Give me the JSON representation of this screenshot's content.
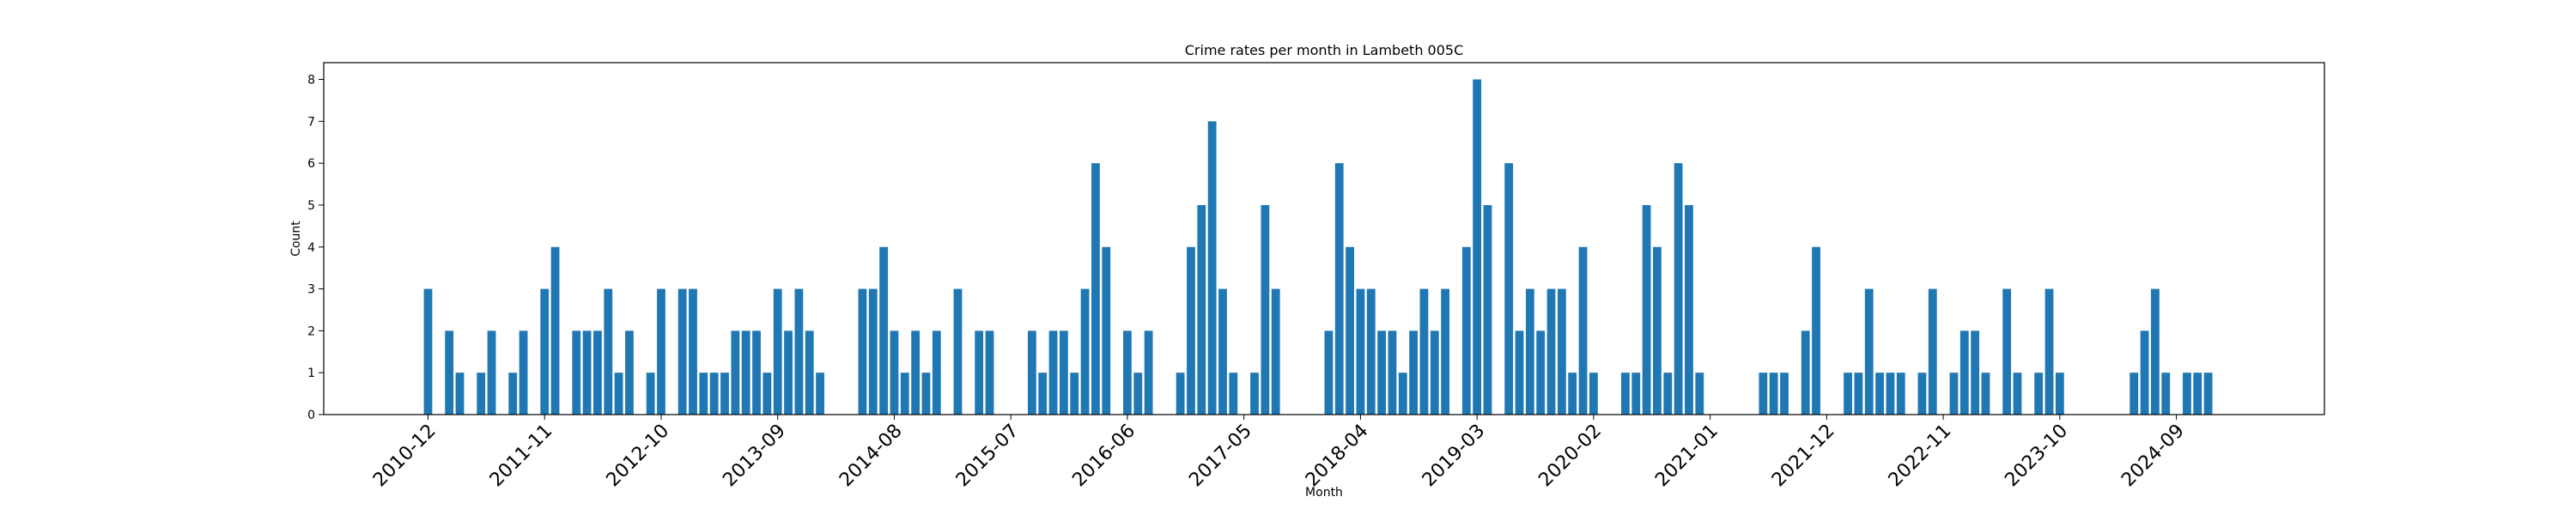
{
  "chart_data": {
    "type": "bar",
    "title": "Crime rates per month in Lambeth 005C",
    "xlabel": "Month",
    "ylabel": "Count",
    "ylim": [
      0,
      8.4
    ],
    "yticks": [
      0,
      1,
      2,
      3,
      4,
      5,
      6,
      7,
      8
    ],
    "grid": false,
    "bar_color": "#1f77b4",
    "start_month": "2010-12",
    "xtick_labels": [
      "2010-12",
      "2011-11",
      "2012-10",
      "2013-09",
      "2014-08",
      "2015-07",
      "2016-06",
      "2017-05",
      "2018-04",
      "2019-03",
      "2020-02",
      "2021-01",
      "2021-12",
      "2022-11",
      "2023-10",
      "2024-09"
    ],
    "categories": [
      "2010-12",
      "2011-01",
      "2011-02",
      "2011-03",
      "2011-04",
      "2011-05",
      "2011-06",
      "2011-07",
      "2011-08",
      "2011-09",
      "2011-10",
      "2011-11",
      "2011-12",
      "2012-01",
      "2012-02",
      "2012-03",
      "2012-04",
      "2012-05",
      "2012-06",
      "2012-07",
      "2012-08",
      "2012-09",
      "2012-10",
      "2012-11",
      "2012-12",
      "2013-01",
      "2013-02",
      "2013-03",
      "2013-04",
      "2013-05",
      "2013-06",
      "2013-07",
      "2013-08",
      "2013-09",
      "2013-10",
      "2013-11",
      "2013-12",
      "2014-01",
      "2014-02",
      "2014-03",
      "2014-04",
      "2014-05",
      "2014-06",
      "2014-07",
      "2014-08",
      "2014-09",
      "2014-10",
      "2014-11",
      "2014-12",
      "2015-01",
      "2015-02",
      "2015-03",
      "2015-04",
      "2015-05",
      "2015-06",
      "2015-07",
      "2015-08",
      "2015-09",
      "2015-10",
      "2015-11",
      "2015-12",
      "2016-01",
      "2016-02",
      "2016-03",
      "2016-04",
      "2016-05",
      "2016-06",
      "2016-07",
      "2016-08",
      "2016-09",
      "2016-10",
      "2016-11",
      "2016-12",
      "2017-01",
      "2017-02",
      "2017-03",
      "2017-04",
      "2017-05",
      "2017-06",
      "2017-07",
      "2017-08",
      "2017-09",
      "2017-10",
      "2017-11",
      "2017-12",
      "2018-01",
      "2018-02",
      "2018-03",
      "2018-04",
      "2018-05",
      "2018-06",
      "2018-07",
      "2018-08",
      "2018-09",
      "2018-10",
      "2018-11",
      "2018-12",
      "2019-01",
      "2019-02",
      "2019-03",
      "2019-04",
      "2019-05",
      "2019-06",
      "2019-07",
      "2019-08",
      "2019-09",
      "2019-10",
      "2019-11",
      "2019-12",
      "2020-01",
      "2020-02",
      "2020-03",
      "2020-04",
      "2020-05",
      "2020-06",
      "2020-07",
      "2020-08",
      "2020-09",
      "2020-10",
      "2020-11",
      "2020-12",
      "2021-01",
      "2021-02",
      "2021-03",
      "2021-04",
      "2021-05",
      "2021-06",
      "2021-07",
      "2021-08",
      "2021-09",
      "2021-10",
      "2021-11",
      "2021-12",
      "2022-01",
      "2022-02",
      "2022-03",
      "2022-04",
      "2022-05",
      "2022-06",
      "2022-07",
      "2022-08",
      "2022-09",
      "2022-10",
      "2022-11",
      "2022-12",
      "2023-01",
      "2023-02",
      "2023-03",
      "2023-04",
      "2023-05",
      "2023-06",
      "2023-07",
      "2023-08",
      "2023-09",
      "2023-10",
      "2023-11",
      "2023-12",
      "2024-01",
      "2024-02",
      "2024-03",
      "2024-04",
      "2024-05",
      "2024-06",
      "2024-07",
      "2024-08",
      "2024-09",
      "2024-10",
      "2024-11",
      "2024-12"
    ],
    "values": [
      3,
      0,
      2,
      1,
      0,
      1,
      2,
      0,
      1,
      2,
      0,
      3,
      4,
      0,
      2,
      2,
      2,
      3,
      1,
      2,
      0,
      1,
      3,
      0,
      3,
      3,
      1,
      1,
      1,
      2,
      2,
      2,
      1,
      3,
      2,
      3,
      2,
      1,
      0,
      0,
      0,
      3,
      3,
      4,
      2,
      1,
      2,
      1,
      2,
      0,
      3,
      0,
      2,
      2,
      0,
      0,
      0,
      2,
      1,
      2,
      2,
      1,
      3,
      6,
      4,
      0,
      2,
      1,
      2,
      0,
      0,
      1,
      4,
      5,
      7,
      3,
      1,
      0,
      1,
      5,
      3,
      0,
      0,
      0,
      0,
      2,
      6,
      4,
      3,
      3,
      2,
      2,
      1,
      2,
      3,
      2,
      3,
      0,
      4,
      8,
      5,
      0,
      6,
      2,
      3,
      2,
      3,
      3,
      1,
      4,
      1,
      0,
      0,
      1,
      1,
      5,
      4,
      1,
      6,
      5,
      1,
      0,
      0,
      0,
      0,
      0,
      1,
      1,
      1,
      0,
      2,
      4,
      0,
      0,
      1,
      1,
      3,
      1,
      1,
      1,
      0,
      1,
      3,
      0,
      1,
      2,
      2,
      1,
      0,
      3,
      1,
      0,
      1,
      3,
      1,
      0,
      0,
      0,
      0,
      0,
      0,
      1,
      2,
      3,
      1,
      0,
      1,
      1,
      1
    ]
  }
}
